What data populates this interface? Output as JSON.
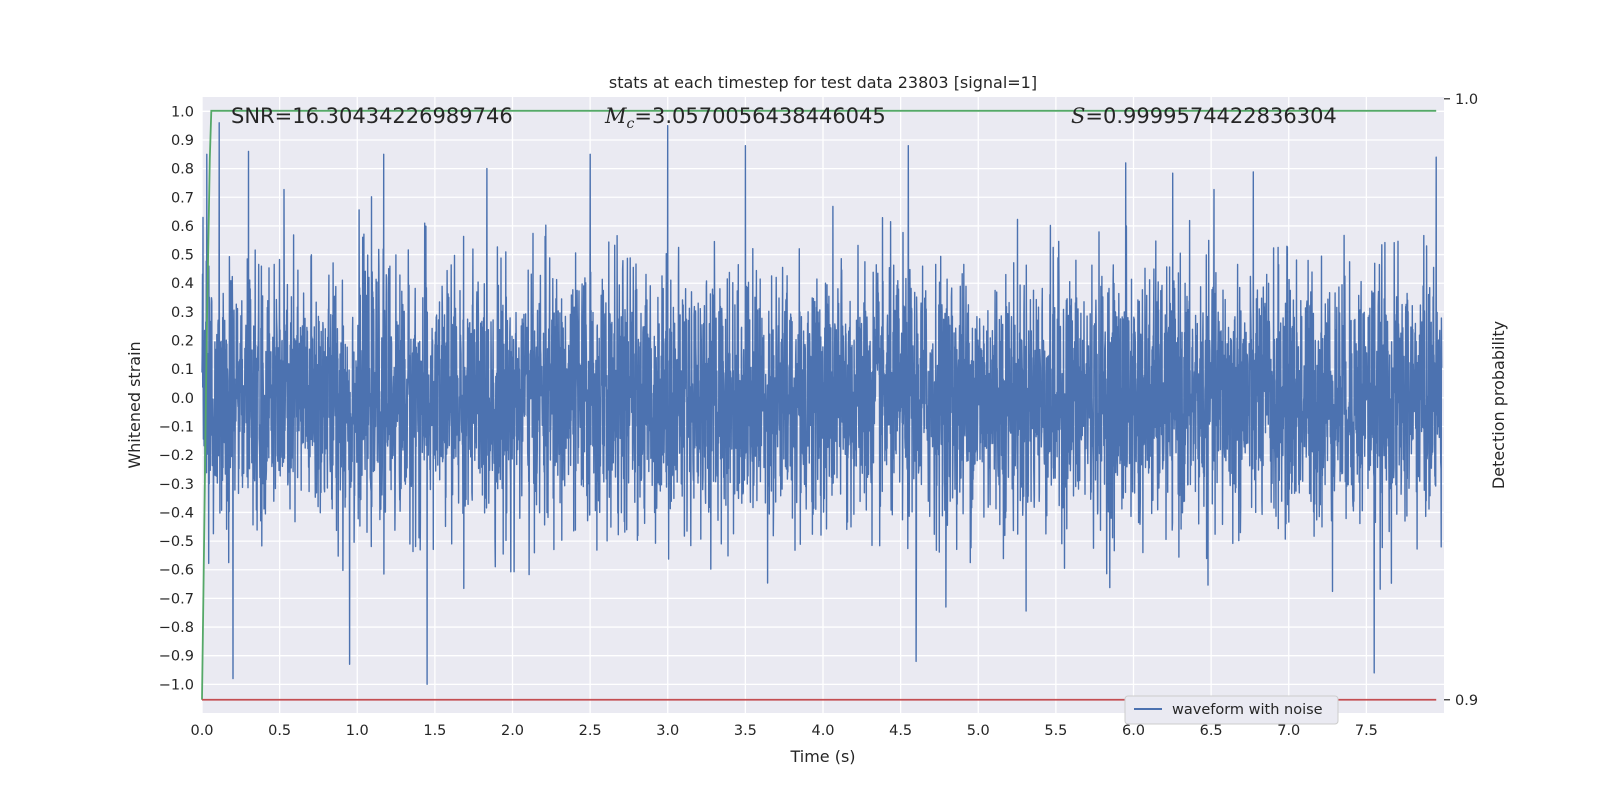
{
  "chart_data": {
    "type": "line",
    "title": "stats at each timestep for test data 23803 [signal=1]",
    "xlabel": "Time (s)",
    "ylabel": "Whitened strain",
    "y2label": "Detection probability",
    "xlim": [
      0.0,
      8.0
    ],
    "ylim": [
      -1.1,
      1.05
    ],
    "y2lim": [
      0.8978,
      1.0003
    ],
    "x_ticks": [
      "0.0",
      "0.5",
      "1.0",
      "1.5",
      "2.0",
      "2.5",
      "3.0",
      "3.5",
      "4.0",
      "4.5",
      "5.0",
      "5.5",
      "6.0",
      "6.5",
      "7.0",
      "7.5"
    ],
    "y_ticks": [
      "1.0",
      "0.9",
      "0.8",
      "0.7",
      "0.6",
      "0.5",
      "0.4",
      "0.3",
      "0.2",
      "0.1",
      "0.0",
      "−0.1",
      "−0.2",
      "−0.3",
      "−0.4",
      "−0.5",
      "−0.6",
      "−0.7",
      "−0.8",
      "−0.9",
      "−1.0"
    ],
    "y2_ticks": [
      "1.0",
      "0.9"
    ],
    "grid": true,
    "legend_position": "lower-right",
    "annotations": {
      "snr": "SNR=16.30434226989746",
      "mc_symbol": "M",
      "mc_sub": "c",
      "mc_value": "=3.0570056438446045",
      "s_symbol": "S",
      "s_value": "=0.9999574422836304"
    },
    "series": [
      {
        "name": "waveform with noise",
        "axis": "left",
        "color": "#4c72b0",
        "description_stats": {
          "amplitude_std": 0.22,
          "max": 0.96,
          "min": -1.0
        },
        "peaks": [
          {
            "x": 0.03,
            "y": 0.85
          },
          {
            "x": 0.11,
            "y": 0.96
          },
          {
            "x": 0.2,
            "y": -0.98
          },
          {
            "x": 0.3,
            "y": 0.86
          },
          {
            "x": 0.95,
            "y": -0.93
          },
          {
            "x": 1.17,
            "y": 0.85
          },
          {
            "x": 1.45,
            "y": -1.0
          },
          {
            "x": 2.5,
            "y": 0.85
          },
          {
            "x": 3.0,
            "y": 0.95
          },
          {
            "x": 3.5,
            "y": 0.88
          },
          {
            "x": 4.6,
            "y": -0.92
          },
          {
            "x": 4.55,
            "y": 0.88
          },
          {
            "x": 5.95,
            "y": 0.82
          },
          {
            "x": 7.55,
            "y": -0.96
          },
          {
            "x": 7.95,
            "y": 0.84
          }
        ]
      },
      {
        "name": "",
        "axis": "right",
        "color": "#55a868",
        "x": [
          0.0,
          0.01,
          0.03,
          0.05,
          0.06,
          7.95
        ],
        "y": [
          0.9,
          0.92,
          0.96,
          0.99,
          0.998,
          0.998
        ]
      },
      {
        "name": "",
        "axis": "right",
        "color": "#c44e52",
        "x": [
          0.0,
          7.95
        ],
        "y": [
          0.9,
          0.9
        ]
      }
    ]
  }
}
